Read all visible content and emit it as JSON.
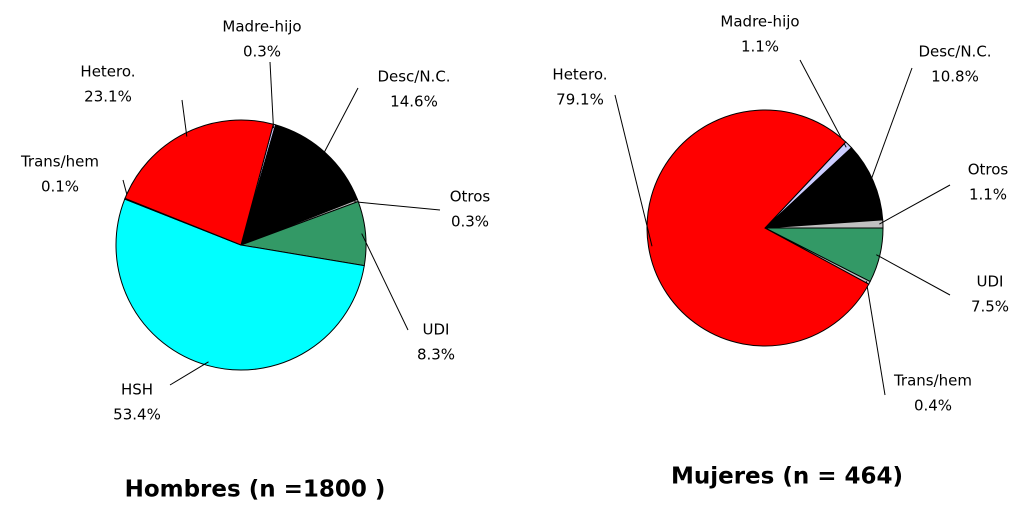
{
  "chart_data": [
    {
      "type": "pie",
      "title": "Hombres (n =1800 )",
      "categories": [
        "Madre-hijo",
        "Desc/N.C.",
        "Otros",
        "UDI",
        "HSH",
        "Trans/hem",
        "Hetero."
      ],
      "values": [
        0.3,
        14.6,
        0.3,
        8.3,
        53.4,
        0.1,
        23.1
      ],
      "value_labels": [
        "0.3%",
        "14.6%",
        "0.3%",
        "8.3%",
        "53.4%",
        "0.1%",
        "23.1%"
      ],
      "colors": [
        "#ccccff",
        "#000000",
        "#c0c0c0",
        "#339966",
        "#00ffff",
        "#ccccff",
        "#ff0000"
      ]
    },
    {
      "type": "pie",
      "title": "Mujeres (n = 464)",
      "categories": [
        "Madre-hijo",
        "Desc/N.C.",
        "Otros",
        "UDI",
        "Trans/hem",
        "Hetero."
      ],
      "values": [
        1.1,
        10.8,
        1.1,
        7.5,
        0.4,
        79.1
      ],
      "value_labels": [
        "1.1%",
        "10.8%",
        "1.1%",
        "7.5%",
        "0.4%",
        "79.1%"
      ],
      "colors": [
        "#ccccff",
        "#000000",
        "#c0c0c0",
        "#339966",
        "#c0c0c0",
        "#ff0000"
      ]
    }
  ]
}
